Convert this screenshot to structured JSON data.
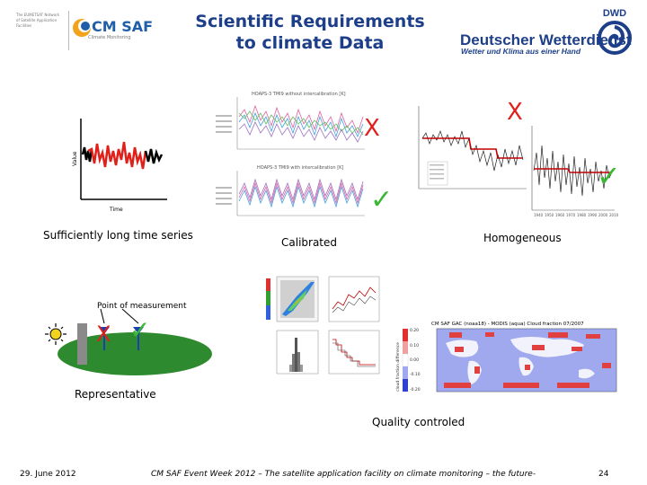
{
  "header": {
    "title_line1": "Scientific Requirements",
    "title_line2": "to climate Data",
    "cmsaf_small_text": "The EUMETSAT Network of Satellite Application Facilities",
    "cmsaf_logo_text": "CM SAF",
    "cmsaf_sub_text": "Climate Monitoring",
    "dwd_logo_text": "DWD",
    "dwd_name": "Deutscher Wetterdienst",
    "dwd_slogan": "Wetter und Klima aus einer Hand"
  },
  "panels": {
    "long_series": {
      "label": "Sufficiently long time series",
      "y_axis": "Value",
      "x_axis": "Time"
    },
    "calibrated": {
      "label": "Calibrated",
      "top_plot_title": "HOAPS-3 TMI9 without intercalibration [K]",
      "bottom_plot_title": "HOAPS-3 TMI9 with intercalibration [K]",
      "cross": "X",
      "check": "✓"
    },
    "homogeneous": {
      "label": "Homogeneous",
      "cross": "X",
      "check": "✓",
      "x_ticks": [
        "1940",
        "1950",
        "1960",
        "1970",
        "1980",
        "1990",
        "2000",
        "2010"
      ]
    },
    "representative": {
      "label": "Representative",
      "point_label": "Point of measurement",
      "cross": "X",
      "check": "✓"
    },
    "quality": {
      "label": "Quality controled",
      "map_title": "CM SAF GAC (noaa18) - MODIS (aqua) Cloud fraction 07/2007",
      "colorbar_label": "cloud fraction difference",
      "colorbar_ticks": [
        "0.20",
        "0.10",
        "0.00",
        "-0.10",
        "-0.20"
      ]
    }
  },
  "footer": {
    "date": "29. June 2012",
    "event": "CM SAF Event Week 2012 – The satellite application facility on climate monitoring – the future-",
    "page": "24"
  },
  "colors": {
    "title_blue": "#1d3f8a",
    "cross_red": "#e0201b",
    "check_green": "#3ab833",
    "ground_green": "#2d8a2e"
  }
}
